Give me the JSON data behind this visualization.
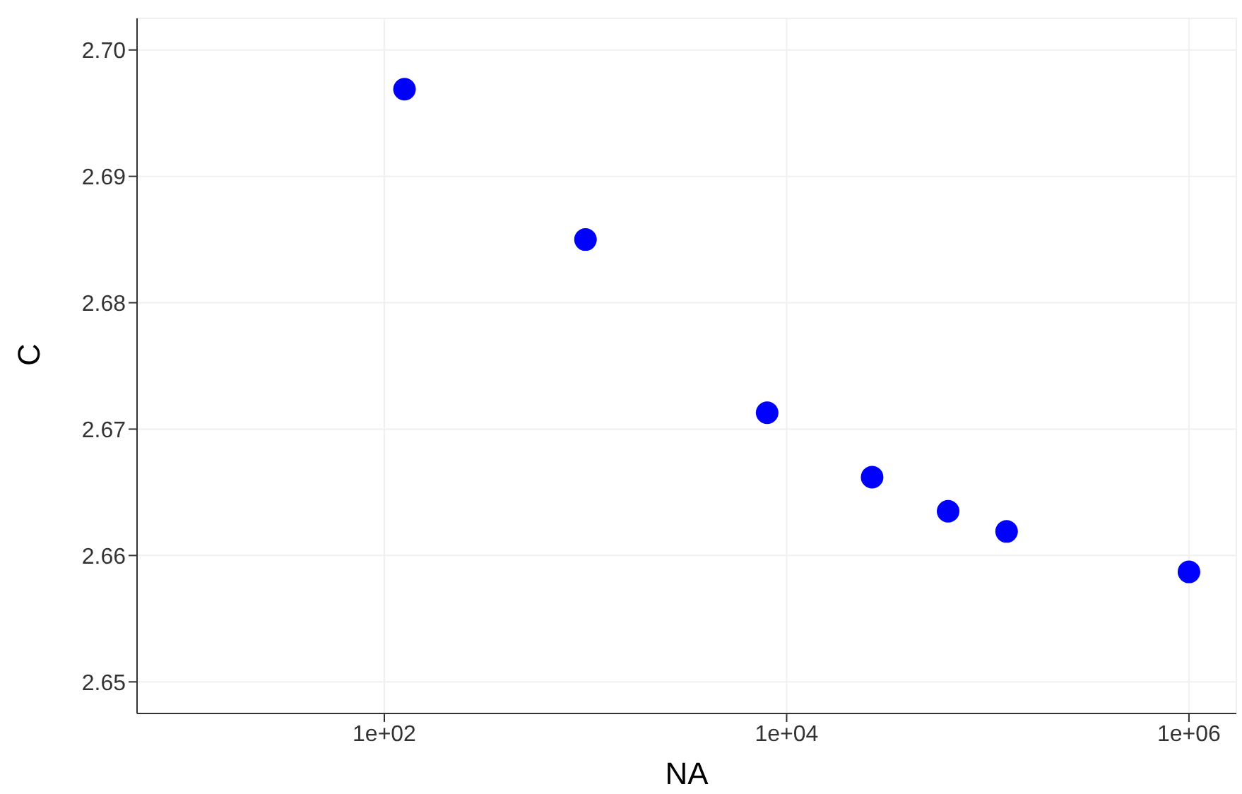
{
  "chart_data": {
    "type": "scatter",
    "xlabel": "NA",
    "ylabel": "C",
    "log": "x",
    "grid": true,
    "marker": "circle",
    "x": [
      126,
      1000,
      8000,
      26600,
      63500,
      124000,
      1000000
    ],
    "series": [
      {
        "color": "#0000ff",
        "values": [
          2.6969,
          2.685,
          2.6713,
          2.6662,
          2.6635,
          2.6619,
          2.6587
        ]
      }
    ],
    "xlim": [
      5.9,
      1720000
    ],
    "xticks": [
      {
        "value": 100,
        "label": "1e+02"
      },
      {
        "value": 10000,
        "label": "1e+04"
      },
      {
        "value": 1000000,
        "label": "1e+06"
      }
    ],
    "ylim": [
      2.6475,
      2.7025
    ],
    "yticks": [
      {
        "value": 2.65,
        "label": "2.65"
      },
      {
        "value": 2.66,
        "label": "2.66"
      },
      {
        "value": 2.67,
        "label": "2.67"
      },
      {
        "value": 2.68,
        "label": "2.68"
      },
      {
        "value": 2.69,
        "label": "2.69"
      },
      {
        "value": 2.7,
        "label": "2.70"
      }
    ]
  }
}
